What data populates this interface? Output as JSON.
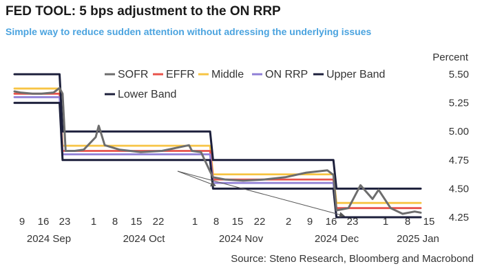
{
  "title": "FED TOOL: 5 bps adjustment to the ON RRP",
  "subtitle": "Simple way to reduce sudden attention without adressing the underlying issues",
  "source": "Source: Steno Research, Bloomberg and Macrobond",
  "chart_data": {
    "type": "line",
    "ylabel": "Percent",
    "ylim": [
      4.2,
      5.6
    ],
    "y_ticks": [
      "5.50",
      "5.25",
      "5.00",
      "4.75",
      "4.50",
      "4.25"
    ],
    "x_day_ticks": [
      "9",
      "16",
      "23",
      "1",
      "8",
      "15",
      "22",
      "1",
      "8",
      "15",
      "22",
      "2",
      "9",
      "16",
      "23",
      "1",
      "8",
      "15"
    ],
    "x_month_labels": [
      "2024 Sep",
      "2024 Oct",
      "2024 Nov",
      "2024 Dec",
      "2025 Jan"
    ],
    "grid": false,
    "legend_position": "top-left",
    "colors": {
      "SOFR": "#6d6d6d",
      "EFFR": "#e8524a",
      "Middle": "#f7c443",
      "ON RRP": "#8f7fd6",
      "Upper Band": "#1c1f3b",
      "Lower Band": "#1c1f3b"
    },
    "series": [
      {
        "name": "SOFR",
        "x": [
          "2024-09-03",
          "2024-09-05",
          "2024-09-09",
          "2024-09-12",
          "2024-09-16",
          "2024-09-18",
          "2024-09-19",
          "2024-09-20",
          "2024-09-23",
          "2024-09-26",
          "2024-09-30",
          "2024-10-01",
          "2024-10-03",
          "2024-10-08",
          "2024-10-15",
          "2024-10-22",
          "2024-10-31",
          "2024-11-01",
          "2024-11-04",
          "2024-11-07",
          "2024-11-08",
          "2024-11-12",
          "2024-11-18",
          "2024-11-25",
          "2024-12-02",
          "2024-12-09",
          "2024-12-16",
          "2024-12-18",
          "2024-12-19",
          "2024-12-23",
          "2024-12-27",
          "2024-12-31",
          "2025-01-02",
          "2025-01-06",
          "2025-01-10",
          "2025-01-14",
          "2025-01-16"
        ],
        "y": [
          5.35,
          5.34,
          5.33,
          5.33,
          5.34,
          5.38,
          5.33,
          4.83,
          4.83,
          4.84,
          4.95,
          5.05,
          4.88,
          4.84,
          4.82,
          4.83,
          4.88,
          4.83,
          4.82,
          4.65,
          4.6,
          4.58,
          4.57,
          4.58,
          4.6,
          4.64,
          4.66,
          4.62,
          4.31,
          4.33,
          4.53,
          4.41,
          4.49,
          4.33,
          4.28,
          4.3,
          4.29
        ]
      },
      {
        "name": "EFFR",
        "x": [
          "2024-09-03",
          "2024-09-18",
          "2024-09-19",
          "2024-11-07",
          "2024-11-08",
          "2024-12-18",
          "2024-12-19",
          "2025-01-16"
        ],
        "y": [
          5.33,
          5.33,
          4.83,
          4.83,
          4.58,
          4.58,
          4.33,
          4.33
        ]
      },
      {
        "name": "Middle",
        "x": [
          "2024-09-03",
          "2024-09-18",
          "2024-09-19",
          "2024-11-07",
          "2024-11-08",
          "2024-12-18",
          "2024-12-19",
          "2025-01-16"
        ],
        "y": [
          5.375,
          5.375,
          4.875,
          4.875,
          4.625,
          4.625,
          4.375,
          4.375
        ]
      },
      {
        "name": "ON RRP",
        "x": [
          "2024-09-03",
          "2024-09-18",
          "2024-09-19",
          "2024-11-07",
          "2024-11-08",
          "2024-12-18",
          "2024-12-19",
          "2025-01-16"
        ],
        "y": [
          5.3,
          5.3,
          4.8,
          4.8,
          4.55,
          4.55,
          4.25,
          4.25
        ]
      },
      {
        "name": "Upper Band",
        "x": [
          "2024-09-03",
          "2024-09-18",
          "2024-09-19",
          "2024-11-07",
          "2024-11-08",
          "2024-12-18",
          "2024-12-19",
          "2025-01-16"
        ],
        "y": [
          5.5,
          5.5,
          5.0,
          5.0,
          4.75,
          4.75,
          4.5,
          4.5
        ]
      },
      {
        "name": "Lower Band",
        "x": [
          "2024-09-03",
          "2024-09-18",
          "2024-09-19",
          "2024-11-07",
          "2024-11-08",
          "2024-12-18",
          "2024-12-19",
          "2025-01-16"
        ],
        "y": [
          5.25,
          5.25,
          4.75,
          4.75,
          4.5,
          4.5,
          4.25,
          4.25
        ]
      }
    ]
  }
}
